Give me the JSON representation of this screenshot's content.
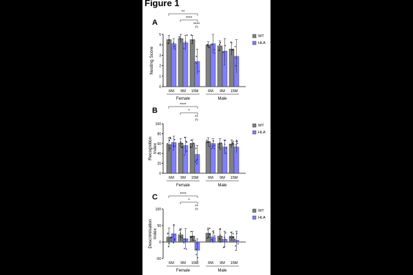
{
  "figure_title": "Figure 1",
  "colors": {
    "wt": "#808080",
    "hla": "#8080ff",
    "hla_points": "#2a2aa8",
    "axis": "#000000"
  },
  "chart_data": [
    {
      "type": "bar",
      "panel_label": "A",
      "ylabel": "Nesting Score",
      "ylim": [
        0,
        5
      ],
      "yticks": [
        0,
        1,
        2,
        3,
        4,
        5
      ],
      "categories": [
        "6M",
        "9M",
        "15M",
        "6M",
        "9M",
        "15M"
      ],
      "groups": [
        "Female",
        "Male"
      ],
      "legend": [
        "WT",
        "HLA"
      ],
      "series": [
        {
          "name": "WT",
          "values": [
            4.5,
            4.6,
            4.5,
            4.0,
            3.9,
            3.6
          ],
          "errors": [
            0.4,
            0.4,
            0.4,
            0.3,
            0.5,
            0.6
          ]
        },
        {
          "name": "HLA",
          "values": [
            4.1,
            4.2,
            2.4,
            4.1,
            3.4,
            2.9
          ],
          "errors": [
            0.5,
            0.7,
            1.2,
            0.9,
            1.2,
            1.6
          ]
        }
      ],
      "significance": [
        "**",
        "****",
        "****"
      ]
    },
    {
      "type": "bar",
      "panel_label": "B",
      "ylabel": "Recognition Index",
      "ylim": [
        0,
        100
      ],
      "yticks": [
        0,
        20,
        40,
        60,
        80,
        100
      ],
      "categories": [
        "6M",
        "9M",
        "15M",
        "6M",
        "9M",
        "15M"
      ],
      "groups": [
        "Female",
        "Male"
      ],
      "legend": [
        "WT",
        "HLA"
      ],
      "series": [
        {
          "name": "WT",
          "values": [
            58,
            61,
            60,
            64,
            60,
            59
          ],
          "errors": [
            14,
            9,
            8,
            8,
            10,
            8
          ]
        },
        {
          "name": "HLA",
          "values": [
            62,
            56,
            38,
            60,
            53,
            53
          ],
          "errors": [
            13,
            17,
            18,
            10,
            14,
            12
          ]
        }
      ],
      "significance": [
        "****",
        "*",
        "**"
      ]
    },
    {
      "type": "bar",
      "panel_label": "C",
      "ylabel": "Descrimination Index",
      "ylim": [
        -50,
        100
      ],
      "yticks": [
        -50,
        0,
        50,
        100
      ],
      "categories": [
        "6M",
        "9M",
        "15M",
        "6M",
        "9M",
        "15M"
      ],
      "groups": [
        "Female",
        "Male"
      ],
      "legend": [
        "WT",
        "HLA"
      ],
      "series": [
        {
          "name": "WT",
          "values": [
            15,
            22,
            18,
            27,
            18,
            17
          ],
          "errors": [
            27,
            18,
            14,
            15,
            20,
            13
          ]
        },
        {
          "name": "HLA",
          "values": [
            25,
            10,
            -25,
            15,
            8,
            5
          ],
          "errors": [
            25,
            30,
            35,
            18,
            25,
            28
          ]
        }
      ],
      "significance": [
        "****",
        "*",
        "**"
      ]
    }
  ]
}
